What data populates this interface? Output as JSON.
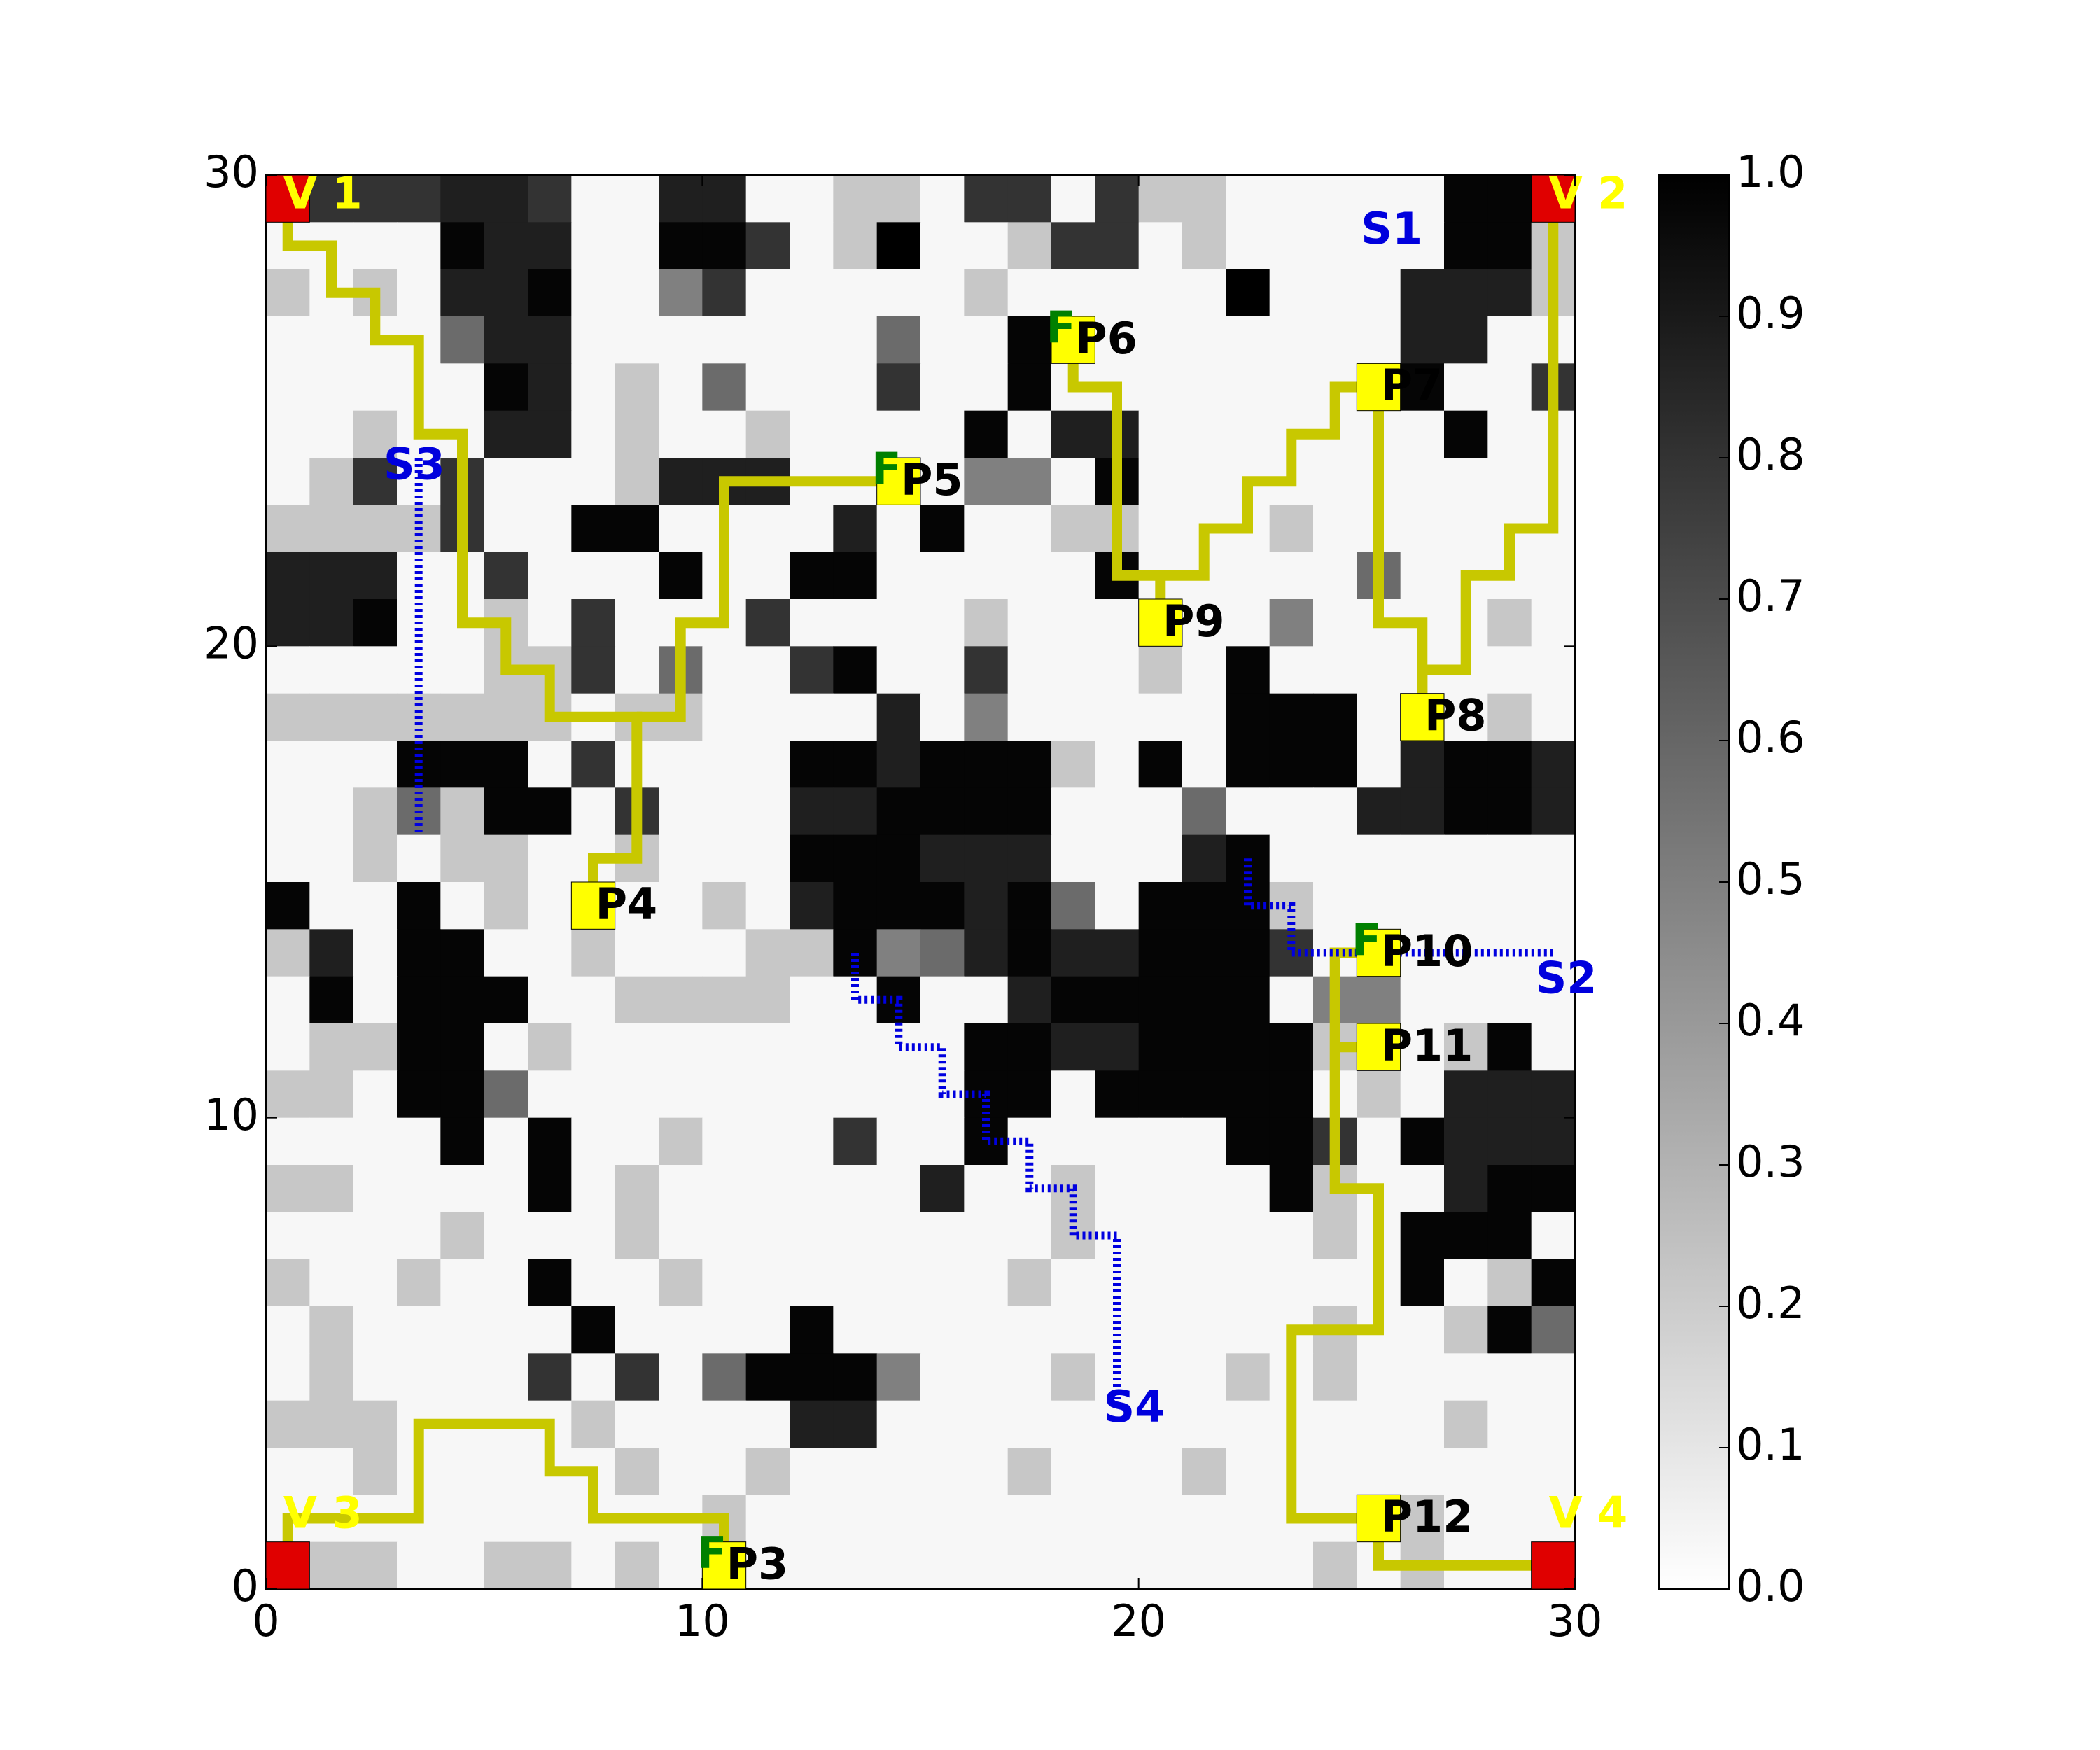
{
  "chart_data": {
    "type": "heatmap",
    "title": "",
    "xlabel": "",
    "ylabel": "",
    "xlim": [
      0,
      30
    ],
    "ylim": [
      0,
      30
    ],
    "x_ticks": [
      "0",
      "10",
      "20",
      "30"
    ],
    "y_ticks": [
      "0",
      "10",
      "20",
      "30"
    ],
    "colorbar": {
      "range": [
        0.0,
        1.0
      ],
      "ticks": [
        "0.0",
        "0.1",
        "0.2",
        "0.3",
        "0.4",
        "0.5",
        "0.6",
        "0.7",
        "0.8",
        "0.9",
        "1.0"
      ],
      "colormap": "gray_r"
    },
    "grid_rows_top_to_bottom": [
      "033388300880022033032200000993",
      "000098800993021002330200000992",
      "202088900630000020000010008882",
      "000058800000005009900000008800",
      "000009802050003009000000009003",
      "002008802002000090880000000900",
      "023030002888000066090000000000",
      "222230099000080900220002000000",
      "888003000900990000090000050000",
      "889002030003000020000006000020",
      "000002230500390030002090000000",
      "222222202200008060000099900020",
      "000999030000998999209099908998",
      "002529903000889999000500088998",
      "002022002000999888000890000000",
      "900902000020899989509992000000",
      "280990020002296589889993000000",
      "090999002222009008999990660000",
      "022990200000000099889999200290",
      "220995000000000099099999020888",
      "000090900200030090000099309888",
      "220000902000000800200009200899",
      "000020002000000000200000209990",
      "200200900200000002000000009029",
      "020000090000900000000000200295",
      "020000303059996000200020200000",
      "222000020000880000000000000200",
      "002000002002000002000200000000",
      "000000000020000000000000002000",
      "022002202020000000000000202000"
    ],
    "grid_cell_values": {
      "0": 0.03,
      "2": 0.22,
      "3": 0.8,
      "5": 0.58,
      "6": 0.5,
      "8": 0.88,
      "9": 0.98
    },
    "vertices": [
      {
        "label": "V 1",
        "x": 0.5,
        "y": 29.5
      },
      {
        "label": "V 2",
        "x": 29.5,
        "y": 29.5
      },
      {
        "label": "V 3",
        "x": 0.5,
        "y": 0.5
      },
      {
        "label": "V 4",
        "x": 29.5,
        "y": 0.5
      }
    ],
    "points": [
      {
        "label": "P3",
        "x": 10.5,
        "y": 0.5,
        "flag": "F"
      },
      {
        "label": "P4",
        "x": 7.5,
        "y": 14.5,
        "flag": ""
      },
      {
        "label": "P5",
        "x": 14.5,
        "y": 23.5,
        "flag": "F"
      },
      {
        "label": "P6",
        "x": 18.5,
        "y": 26.5,
        "flag": "F"
      },
      {
        "label": "P7",
        "x": 25.5,
        "y": 25.5,
        "flag": ""
      },
      {
        "label": "P8",
        "x": 26.5,
        "y": 18.5,
        "flag": ""
      },
      {
        "label": "P9",
        "x": 20.5,
        "y": 20.5,
        "flag": ""
      },
      {
        "label": "P10",
        "x": 25.5,
        "y": 13.5,
        "flag": "F"
      },
      {
        "label": "P11",
        "x": 25.5,
        "y": 11.5,
        "flag": ""
      },
      {
        "label": "P12",
        "x": 25.5,
        "y": 1.5,
        "flag": ""
      }
    ],
    "stations": [
      {
        "label": "S1",
        "x": 25.8,
        "y": 28.8
      },
      {
        "label": "S2",
        "x": 29.8,
        "y": 12.9
      },
      {
        "label": "S3",
        "x": 3.4,
        "y": 23.8
      },
      {
        "label": "S4",
        "x": 19.9,
        "y": 3.8
      }
    ],
    "paths": [
      {
        "style": "yellow-solid",
        "points": [
          [
            0.5,
            29.5
          ],
          [
            0.5,
            28.5
          ],
          [
            1.5,
            28.5
          ],
          [
            1.5,
            27.5
          ],
          [
            2.5,
            27.5
          ],
          [
            2.5,
            26.5
          ],
          [
            3.5,
            26.5
          ],
          [
            3.5,
            24.5
          ],
          [
            4.5,
            24.5
          ],
          [
            4.5,
            20.5
          ],
          [
            5.5,
            20.5
          ],
          [
            5.5,
            19.5
          ],
          [
            6.5,
            19.5
          ],
          [
            6.5,
            18.5
          ],
          [
            8.5,
            18.5
          ],
          [
            8.5,
            15.5
          ],
          [
            7.5,
            15.5
          ],
          [
            7.5,
            14.5
          ]
        ]
      },
      {
        "style": "yellow-solid",
        "points": [
          [
            8.5,
            18.5
          ],
          [
            9.5,
            18.5
          ],
          [
            9.5,
            20.5
          ],
          [
            10.5,
            20.5
          ],
          [
            10.5,
            23.5
          ],
          [
            14.5,
            23.5
          ]
        ]
      },
      {
        "style": "yellow-solid",
        "points": [
          [
            29.5,
            29.5
          ],
          [
            29.5,
            22.5
          ],
          [
            28.5,
            22.5
          ],
          [
            28.5,
            21.5
          ],
          [
            27.5,
            21.5
          ],
          [
            27.5,
            19.5
          ],
          [
            26.5,
            19.5
          ],
          [
            26.5,
            18.5
          ]
        ]
      },
      {
        "style": "yellow-solid",
        "points": [
          [
            26.5,
            18.5
          ],
          [
            26.5,
            20.5
          ],
          [
            25.5,
            20.5
          ],
          [
            25.5,
            25.5
          ]
        ]
      },
      {
        "style": "yellow-solid",
        "points": [
          [
            25.5,
            25.5
          ],
          [
            24.5,
            25.5
          ],
          [
            24.5,
            24.5
          ],
          [
            23.5,
            24.5
          ],
          [
            23.5,
            23.5
          ],
          [
            22.5,
            23.5
          ],
          [
            22.5,
            22.5
          ],
          [
            21.5,
            22.5
          ],
          [
            21.5,
            21.5
          ],
          [
            20.5,
            21.5
          ],
          [
            20.5,
            20.5
          ]
        ]
      },
      {
        "style": "yellow-solid",
        "points": [
          [
            20.5,
            21.5
          ],
          [
            19.5,
            21.5
          ],
          [
            19.5,
            25.5
          ],
          [
            18.5,
            25.5
          ],
          [
            18.5,
            26.5
          ]
        ]
      },
      {
        "style": "yellow-solid",
        "points": [
          [
            25.5,
            13.5
          ],
          [
            24.5,
            13.5
          ],
          [
            24.5,
            8.5
          ],
          [
            25.5,
            8.5
          ],
          [
            25.5,
            5.5
          ],
          [
            23.5,
            5.5
          ],
          [
            23.5,
            1.5
          ],
          [
            25.5,
            1.5
          ],
          [
            25.5,
            0.5
          ],
          [
            29.5,
            0.5
          ]
        ]
      },
      {
        "style": "yellow-solid",
        "points": [
          [
            24.5,
            11.5
          ],
          [
            25.5,
            11.5
          ]
        ]
      },
      {
        "style": "yellow-solid",
        "points": [
          [
            0.5,
            0.5
          ],
          [
            0.5,
            1.5
          ],
          [
            3.5,
            1.5
          ],
          [
            3.5,
            3.5
          ],
          [
            6.5,
            3.5
          ],
          [
            6.5,
            2.5
          ],
          [
            7.5,
            2.5
          ],
          [
            7.5,
            1.5
          ],
          [
            10.5,
            1.5
          ],
          [
            10.5,
            0.5
          ]
        ]
      },
      {
        "style": "blue-dotted",
        "points": [
          [
            3.5,
            24
          ],
          [
            3.5,
            16
          ]
        ]
      },
      {
        "style": "blue-dotted",
        "points": [
          [
            22.5,
            15.5
          ],
          [
            22.5,
            14.5
          ],
          [
            23.5,
            14.5
          ],
          [
            23.5,
            13.5
          ],
          [
            29.5,
            13.5
          ]
        ]
      },
      {
        "style": "blue-dotted",
        "points": [
          [
            13.5,
            13.5
          ],
          [
            13.5,
            12.5
          ],
          [
            14.5,
            12.5
          ],
          [
            14.5,
            11.5
          ],
          [
            15.5,
            11.5
          ],
          [
            15.5,
            10.5
          ],
          [
            16.5,
            10.5
          ],
          [
            16.5,
            9.5
          ],
          [
            17.5,
            9.5
          ],
          [
            17.5,
            8.5
          ],
          [
            18.5,
            8.5
          ],
          [
            18.5,
            7.5
          ],
          [
            19.5,
            7.5
          ],
          [
            19.5,
            4
          ]
        ]
      }
    ]
  },
  "colors": {
    "vertex_fill": "#e00000",
    "vertex_label": "#ffff00",
    "point_fill": "#ffff00",
    "point_label": "#000000",
    "flag_label": "#008000",
    "station_label": "#0000dd",
    "path_yellow": "#c8c800",
    "path_blue": "#0000e0"
  }
}
